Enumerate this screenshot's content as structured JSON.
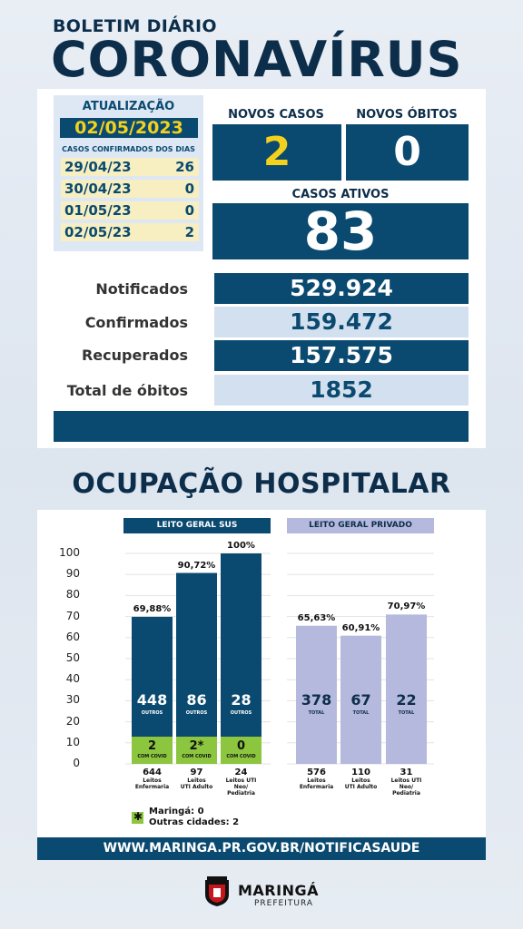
{
  "header": {
    "subtitle": "BOLETIM DIÁRIO",
    "title": "CORONAVÍRUS"
  },
  "update": {
    "label": "ATUALIZAÇÃO",
    "date": "02/05/2023",
    "days_label": "CASOS CONFIRMADOS DOS DIAS",
    "days": [
      {
        "date": "29/04/23",
        "value": "26"
      },
      {
        "date": "30/04/23",
        "value": "0"
      },
      {
        "date": "01/05/23",
        "value": "0"
      },
      {
        "date": "02/05/23",
        "value": "2"
      }
    ]
  },
  "novos_casos": {
    "label": "NOVOS CASOS",
    "value": "2"
  },
  "novos_obitos": {
    "label": "NOVOS ÓBITOS",
    "value": "0"
  },
  "casos_ativos": {
    "label": "CASOS ATIVOS",
    "value": "83"
  },
  "stats": [
    {
      "label": "Notificados",
      "value": "529.924"
    },
    {
      "label": "Confirmados",
      "value": "159.472"
    },
    {
      "label": "Recuperados",
      "value": "157.575"
    },
    {
      "label": "Total de óbitos",
      "value": "1852"
    }
  ],
  "occupancy_title": "OCUPAÇÃO HOSPITALAR",
  "colors": {
    "navy": "#0b4a70",
    "yellow": "#f4d11c",
    "green": "#8cc63f",
    "lavender": "#b5b9de",
    "lightblue": "#d3e0ef"
  },
  "chart_data": {
    "type": "bar",
    "yaxis_ticks": [
      "100",
      "90",
      "80",
      "70",
      "60",
      "50",
      "40",
      "30",
      "20",
      "10",
      "0"
    ],
    "ylim": [
      0,
      100
    ],
    "groups": [
      {
        "name": "LEITO GERAL SUS",
        "bars": [
          {
            "percent": 69.88,
            "percent_label": "69,88%",
            "outros": "448",
            "outros_label": "OUTROS",
            "covid": "2",
            "covid_label": "COM COVID",
            "capacity": "644",
            "capacity_label": "Leitos\nEnfermaria"
          },
          {
            "percent": 90.72,
            "percent_label": "90,72%",
            "outros": "86",
            "outros_label": "OUTROS",
            "covid": "2*",
            "covid_label": "COM COVID",
            "capacity": "97",
            "capacity_label": "Leitos\nUTI Adulto"
          },
          {
            "percent": 100,
            "percent_label": "100%",
            "outros": "28",
            "outros_label": "OUTROS",
            "covid": "0",
            "covid_label": "COM COVID",
            "capacity": "24",
            "capacity_label": "Leitos UTI\nNeo/\nPediatria"
          }
        ]
      },
      {
        "name": "LEITO GERAL PRIVADO",
        "bars": [
          {
            "percent": 65.63,
            "percent_label": "65,63%",
            "total": "378",
            "total_label": "TOTAL",
            "capacity": "576",
            "capacity_label": "Leitos\nEnfermaria"
          },
          {
            "percent": 60.91,
            "percent_label": "60,91%",
            "total": "67",
            "total_label": "TOTAL",
            "capacity": "110",
            "capacity_label": "Leitos\nUTI Adulto"
          },
          {
            "percent": 70.97,
            "percent_label": "70,97%",
            "total": "22",
            "total_label": "TOTAL",
            "capacity": "31",
            "capacity_label": "Leitos UTI\nNeo/\nPediatria"
          }
        ]
      }
    ]
  },
  "legend": {
    "icon": "asterisk-icon",
    "line1": "Maringá: 0",
    "line2": "Outras cidades: 2"
  },
  "url": "WWW.MARINGA.PR.GOV.BR/NOTIFICASAUDE",
  "footer": {
    "brand": "MARINGÁ",
    "sub": "PREFEITURA",
    "logo": "crest-icon"
  }
}
